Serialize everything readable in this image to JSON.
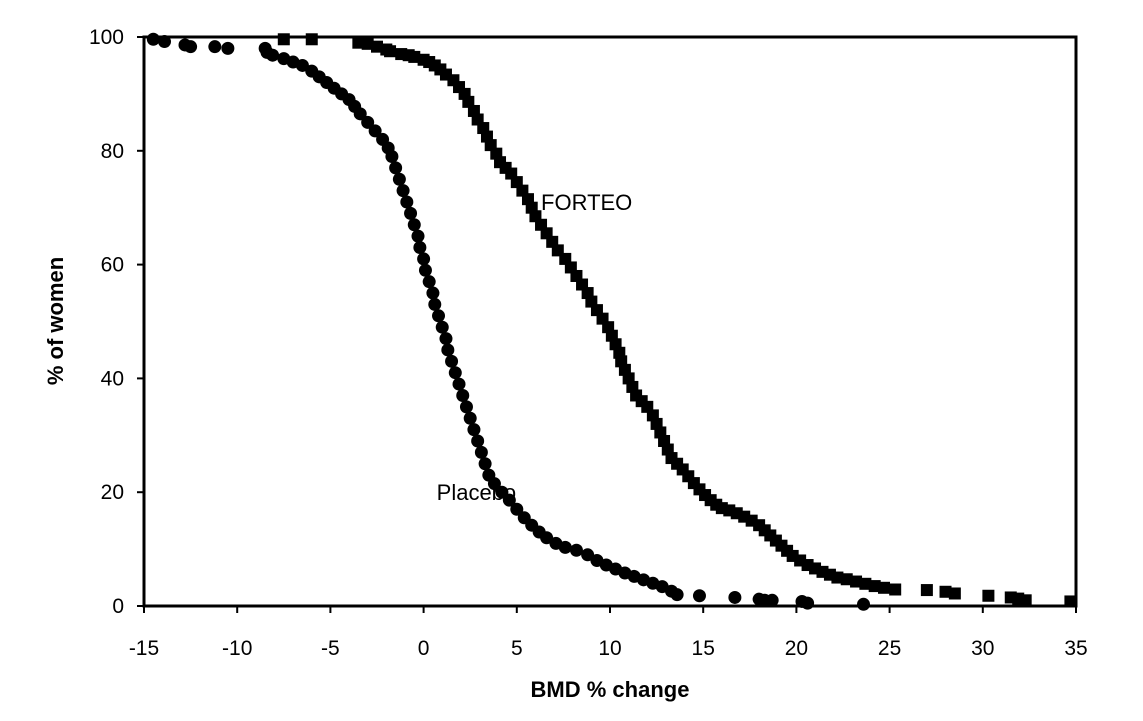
{
  "chart_data": {
    "type": "scatter",
    "title": "",
    "xlabel": "BMD % change",
    "ylabel": "% of women",
    "xlim": [
      -15,
      35
    ],
    "ylim": [
      0,
      100
    ],
    "x_ticks": [
      -15,
      -10,
      -5,
      0,
      5,
      10,
      15,
      20,
      25,
      30,
      35
    ],
    "y_ticks": [
      0,
      20,
      40,
      60,
      80,
      100
    ],
    "grid": false,
    "legend": "none",
    "series": [
      {
        "name": "FORTEO",
        "marker": "square",
        "color": "#000000",
        "points": [
          [
            -7.5,
            99.6
          ],
          [
            -6.0,
            99.6
          ],
          [
            -3.5,
            99.0
          ],
          [
            -3.0,
            98.8
          ],
          [
            -2.5,
            98.3
          ],
          [
            -2.0,
            97.8
          ],
          [
            -1.8,
            97.5
          ],
          [
            -1.2,
            97.0
          ],
          [
            -0.8,
            96.8
          ],
          [
            -0.5,
            96.5
          ],
          [
            0.0,
            96.0
          ],
          [
            0.3,
            95.6
          ],
          [
            0.6,
            95.0
          ],
          [
            0.9,
            94.3
          ],
          [
            1.2,
            93.4
          ],
          [
            1.6,
            92.4
          ],
          [
            1.9,
            91.2
          ],
          [
            2.2,
            90.0
          ],
          [
            2.4,
            88.6
          ],
          [
            2.7,
            87.0
          ],
          [
            2.9,
            85.5
          ],
          [
            3.2,
            84.0
          ],
          [
            3.4,
            82.5
          ],
          [
            3.6,
            81.0
          ],
          [
            3.9,
            79.5
          ],
          [
            4.1,
            78.0
          ],
          [
            4.4,
            77.0
          ],
          [
            4.7,
            76.0
          ],
          [
            5.0,
            74.5
          ],
          [
            5.3,
            73.0
          ],
          [
            5.6,
            71.5
          ],
          [
            5.8,
            70.0
          ],
          [
            6.0,
            68.5
          ],
          [
            6.3,
            67.0
          ],
          [
            6.6,
            65.5
          ],
          [
            6.9,
            64.0
          ],
          [
            7.2,
            62.5
          ],
          [
            7.6,
            61.0
          ],
          [
            7.9,
            59.5
          ],
          [
            8.2,
            58.0
          ],
          [
            8.5,
            56.5
          ],
          [
            8.8,
            55.0
          ],
          [
            9.0,
            53.5
          ],
          [
            9.3,
            52.0
          ],
          [
            9.6,
            50.5
          ],
          [
            9.9,
            49.0
          ],
          [
            10.1,
            47.5
          ],
          [
            10.3,
            46.0
          ],
          [
            10.5,
            44.5
          ],
          [
            10.6,
            43.0
          ],
          [
            10.8,
            41.5
          ],
          [
            11.0,
            40.0
          ],
          [
            11.2,
            38.5
          ],
          [
            11.4,
            37.0
          ],
          [
            11.7,
            36.0
          ],
          [
            12.0,
            35.0
          ],
          [
            12.3,
            33.5
          ],
          [
            12.5,
            32.0
          ],
          [
            12.7,
            30.5
          ],
          [
            12.9,
            29.0
          ],
          [
            13.1,
            27.5
          ],
          [
            13.3,
            26.0
          ],
          [
            13.6,
            25.0
          ],
          [
            13.9,
            24.0
          ],
          [
            14.2,
            22.8
          ],
          [
            14.5,
            21.6
          ],
          [
            14.8,
            20.5
          ],
          [
            15.1,
            19.5
          ],
          [
            15.4,
            18.6
          ],
          [
            15.7,
            17.8
          ],
          [
            16.0,
            17.2
          ],
          [
            16.4,
            16.8
          ],
          [
            16.8,
            16.3
          ],
          [
            17.2,
            15.7
          ],
          [
            17.6,
            15.0
          ],
          [
            18.0,
            14.2
          ],
          [
            18.3,
            13.3
          ],
          [
            18.6,
            12.4
          ],
          [
            18.9,
            11.5
          ],
          [
            19.2,
            10.6
          ],
          [
            19.5,
            9.7
          ],
          [
            19.8,
            8.8
          ],
          [
            20.2,
            8.0
          ],
          [
            20.6,
            7.2
          ],
          [
            21.0,
            6.6
          ],
          [
            21.4,
            6.0
          ],
          [
            21.8,
            5.5
          ],
          [
            22.2,
            5.0
          ],
          [
            22.7,
            4.7
          ],
          [
            23.2,
            4.3
          ],
          [
            23.7,
            3.9
          ],
          [
            24.2,
            3.5
          ],
          [
            24.7,
            3.2
          ],
          [
            25.3,
            2.9
          ],
          [
            27.0,
            2.8
          ],
          [
            28.0,
            2.5
          ],
          [
            28.5,
            2.2
          ],
          [
            30.3,
            1.8
          ],
          [
            31.5,
            1.5
          ],
          [
            31.9,
            1.3
          ],
          [
            32.3,
            1.0
          ],
          [
            34.7,
            0.8
          ]
        ]
      },
      {
        "name": "Placebo",
        "marker": "circle",
        "color": "#000000",
        "points": [
          [
            -14.5,
            99.6
          ],
          [
            -13.9,
            99.2
          ],
          [
            -12.8,
            98.6
          ],
          [
            -12.5,
            98.3
          ],
          [
            -11.2,
            98.3
          ],
          [
            -10.5,
            98.0
          ],
          [
            -8.5,
            98.0
          ],
          [
            -8.4,
            97.3
          ],
          [
            -8.1,
            96.8
          ],
          [
            -7.5,
            96.2
          ],
          [
            -7.0,
            95.6
          ],
          [
            -6.5,
            95.0
          ],
          [
            -6.0,
            94.0
          ],
          [
            -5.6,
            93.0
          ],
          [
            -5.2,
            92.0
          ],
          [
            -4.8,
            91.0
          ],
          [
            -4.4,
            90.0
          ],
          [
            -4.0,
            89.0
          ],
          [
            -3.7,
            87.8
          ],
          [
            -3.4,
            86.5
          ],
          [
            -3.0,
            85.0
          ],
          [
            -2.6,
            83.5
          ],
          [
            -2.2,
            82.0
          ],
          [
            -1.9,
            80.5
          ],
          [
            -1.7,
            79.0
          ],
          [
            -1.5,
            77.0
          ],
          [
            -1.3,
            75.0
          ],
          [
            -1.1,
            73.0
          ],
          [
            -0.9,
            71.0
          ],
          [
            -0.7,
            69.0
          ],
          [
            -0.5,
            67.0
          ],
          [
            -0.3,
            65.0
          ],
          [
            -0.2,
            63.0
          ],
          [
            0.0,
            61.0
          ],
          [
            0.1,
            59.0
          ],
          [
            0.3,
            57.0
          ],
          [
            0.5,
            55.0
          ],
          [
            0.6,
            53.0
          ],
          [
            0.8,
            51.0
          ],
          [
            1.0,
            49.0
          ],
          [
            1.2,
            47.0
          ],
          [
            1.3,
            45.0
          ],
          [
            1.5,
            43.0
          ],
          [
            1.7,
            41.0
          ],
          [
            1.9,
            39.0
          ],
          [
            2.1,
            37.0
          ],
          [
            2.3,
            35.0
          ],
          [
            2.5,
            33.0
          ],
          [
            2.7,
            31.0
          ],
          [
            2.9,
            29.0
          ],
          [
            3.1,
            27.0
          ],
          [
            3.3,
            25.0
          ],
          [
            3.5,
            23.0
          ],
          [
            3.8,
            21.5
          ],
          [
            4.2,
            20.0
          ],
          [
            4.6,
            18.6
          ],
          [
            5.0,
            17.0
          ],
          [
            5.4,
            15.5
          ],
          [
            5.8,
            14.2
          ],
          [
            6.2,
            13.0
          ],
          [
            6.6,
            12.0
          ],
          [
            7.1,
            11.0
          ],
          [
            7.6,
            10.3
          ],
          [
            8.2,
            9.8
          ],
          [
            8.8,
            9.0
          ],
          [
            9.3,
            8.0
          ],
          [
            9.8,
            7.2
          ],
          [
            10.3,
            6.5
          ],
          [
            10.8,
            5.8
          ],
          [
            11.3,
            5.2
          ],
          [
            11.8,
            4.6
          ],
          [
            12.3,
            4.0
          ],
          [
            12.8,
            3.4
          ],
          [
            13.3,
            2.6
          ],
          [
            13.6,
            2.0
          ],
          [
            14.8,
            1.8
          ],
          [
            16.7,
            1.5
          ],
          [
            18.0,
            1.2
          ],
          [
            18.3,
            1.0
          ],
          [
            18.7,
            1.0
          ],
          [
            20.3,
            0.8
          ],
          [
            20.6,
            0.5
          ],
          [
            23.6,
            0.3
          ]
        ]
      }
    ],
    "annotations": [
      {
        "text": "FORTEO",
        "x": 6.3,
        "y": 71
      },
      {
        "text": "Placebo",
        "x": 0.7,
        "y": 20
      }
    ]
  }
}
